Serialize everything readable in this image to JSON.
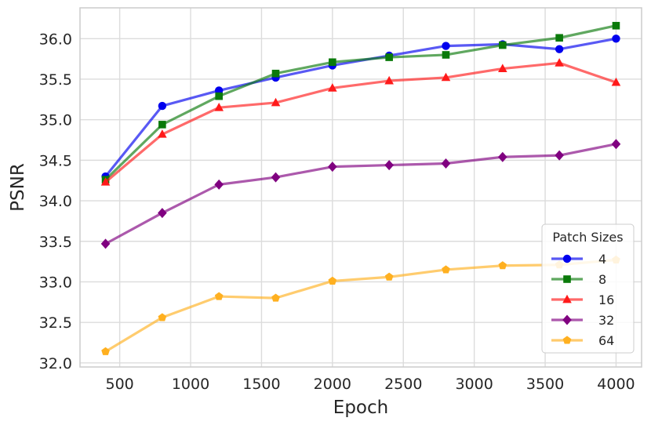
{
  "chart_data": {
    "type": "line",
    "xlabel": "Epoch",
    "ylabel": "PSNR",
    "xlim": [
      220,
      4180
    ],
    "ylim": [
      31.95,
      36.38
    ],
    "xticks": [
      500,
      1000,
      1500,
      2000,
      2500,
      3000,
      3500,
      4000
    ],
    "yticks": [
      32.0,
      32.5,
      33.0,
      33.5,
      34.0,
      34.5,
      35.0,
      35.5,
      36.0
    ],
    "grid": true,
    "x": [
      400,
      800,
      1200,
      1600,
      2000,
      2400,
      2800,
      3200,
      3600,
      4000
    ],
    "legend": {
      "title": "Patch Sizes",
      "position": "lower-right"
    },
    "series": [
      {
        "name": "4",
        "color": "#0000ee",
        "marker": "circle",
        "values": [
          34.3,
          35.17,
          35.36,
          35.52,
          35.67,
          35.79,
          35.91,
          35.93,
          35.87,
          36.0
        ]
      },
      {
        "name": "8",
        "color": "#0a7a0a",
        "marker": "square",
        "values": [
          34.26,
          34.94,
          35.29,
          35.57,
          35.71,
          35.77,
          35.8,
          35.92,
          36.01,
          36.16
        ]
      },
      {
        "name": "16",
        "color": "#ff1a1a",
        "marker": "triangle",
        "values": [
          34.23,
          34.82,
          35.15,
          35.21,
          35.39,
          35.48,
          35.52,
          35.63,
          35.7,
          35.46
        ]
      },
      {
        "name": "32",
        "color": "#800080",
        "marker": "diamond",
        "values": [
          33.47,
          33.85,
          34.2,
          34.29,
          34.42,
          34.44,
          34.46,
          34.54,
          34.56,
          34.7
        ]
      },
      {
        "name": "64",
        "color": "#ffb020",
        "marker": "pentagon",
        "values": [
          32.14,
          32.56,
          32.82,
          32.8,
          33.01,
          33.06,
          33.15,
          33.2,
          33.21,
          33.27
        ]
      }
    ]
  }
}
